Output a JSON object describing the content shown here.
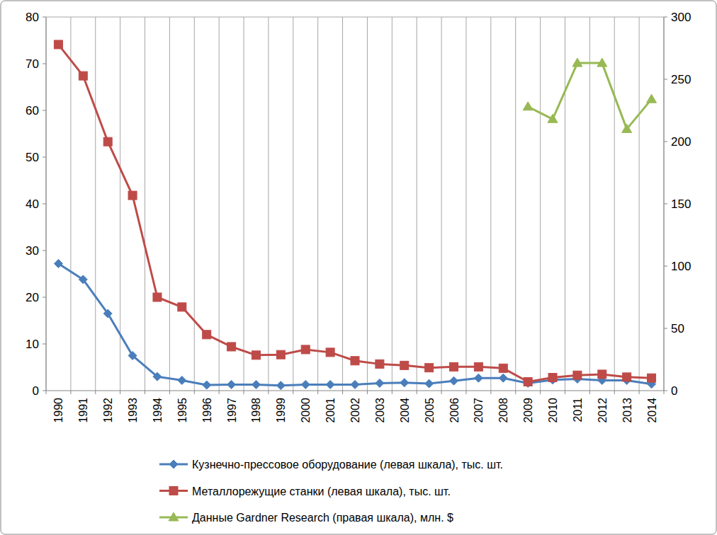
{
  "chart_data": {
    "type": "line",
    "categories": [
      "1990",
      "1991",
      "1992",
      "1993",
      "1994",
      "1995",
      "1996",
      "1997",
      "1998",
      "1999",
      "2000",
      "2001",
      "2002",
      "2003",
      "2004",
      "2005",
      "2006",
      "2007",
      "2008",
      "2009",
      "2010",
      "2011",
      "2012",
      "2013",
      "2014"
    ],
    "series": [
      {
        "name": "Кузнечно-прессовое оборудование (левая шкала), тыс. шт.",
        "color": "#4a7ebb",
        "marker": "diamond",
        "values": [
          27.2,
          23.8,
          16.5,
          7.5,
          3.0,
          2.2,
          1.2,
          1.3,
          1.3,
          1.1,
          1.3,
          1.3,
          1.3,
          1.6,
          1.7,
          1.5,
          2.1,
          2.7,
          2.7,
          1.6,
          2.3,
          2.5,
          2.2,
          2.2,
          1.4
        ]
      },
      {
        "name": "Металлорежущие станки (левая шкала), тыс. шт.",
        "color": "#be4b48",
        "marker": "square",
        "values": [
          74.1,
          67.4,
          53.3,
          41.8,
          20.0,
          17.9,
          12.0,
          9.4,
          7.6,
          7.7,
          8.8,
          8.2,
          6.4,
          5.7,
          5.4,
          4.9,
          5.1,
          5.1,
          4.8,
          1.9,
          2.8,
          3.3,
          3.5,
          2.9,
          2.7
        ]
      },
      {
        "name": "Данные Gardner Research (правая шкала), млн. $",
        "color": "#98b954",
        "marker": "triangle",
        "axis": "y2",
        "values": [
          null,
          null,
          null,
          null,
          null,
          null,
          null,
          null,
          null,
          null,
          null,
          null,
          null,
          null,
          null,
          null,
          null,
          null,
          null,
          228,
          218,
          263,
          263,
          210,
          234
        ]
      }
    ],
    "ylim": [
      0,
      80
    ],
    "yticks": [
      0,
      10,
      20,
      30,
      40,
      50,
      60,
      70,
      80
    ],
    "y2lim": [
      0,
      300
    ],
    "y2ticks": [
      0,
      50,
      100,
      150,
      200,
      250,
      300
    ],
    "grid": true,
    "legend": "bottom"
  }
}
